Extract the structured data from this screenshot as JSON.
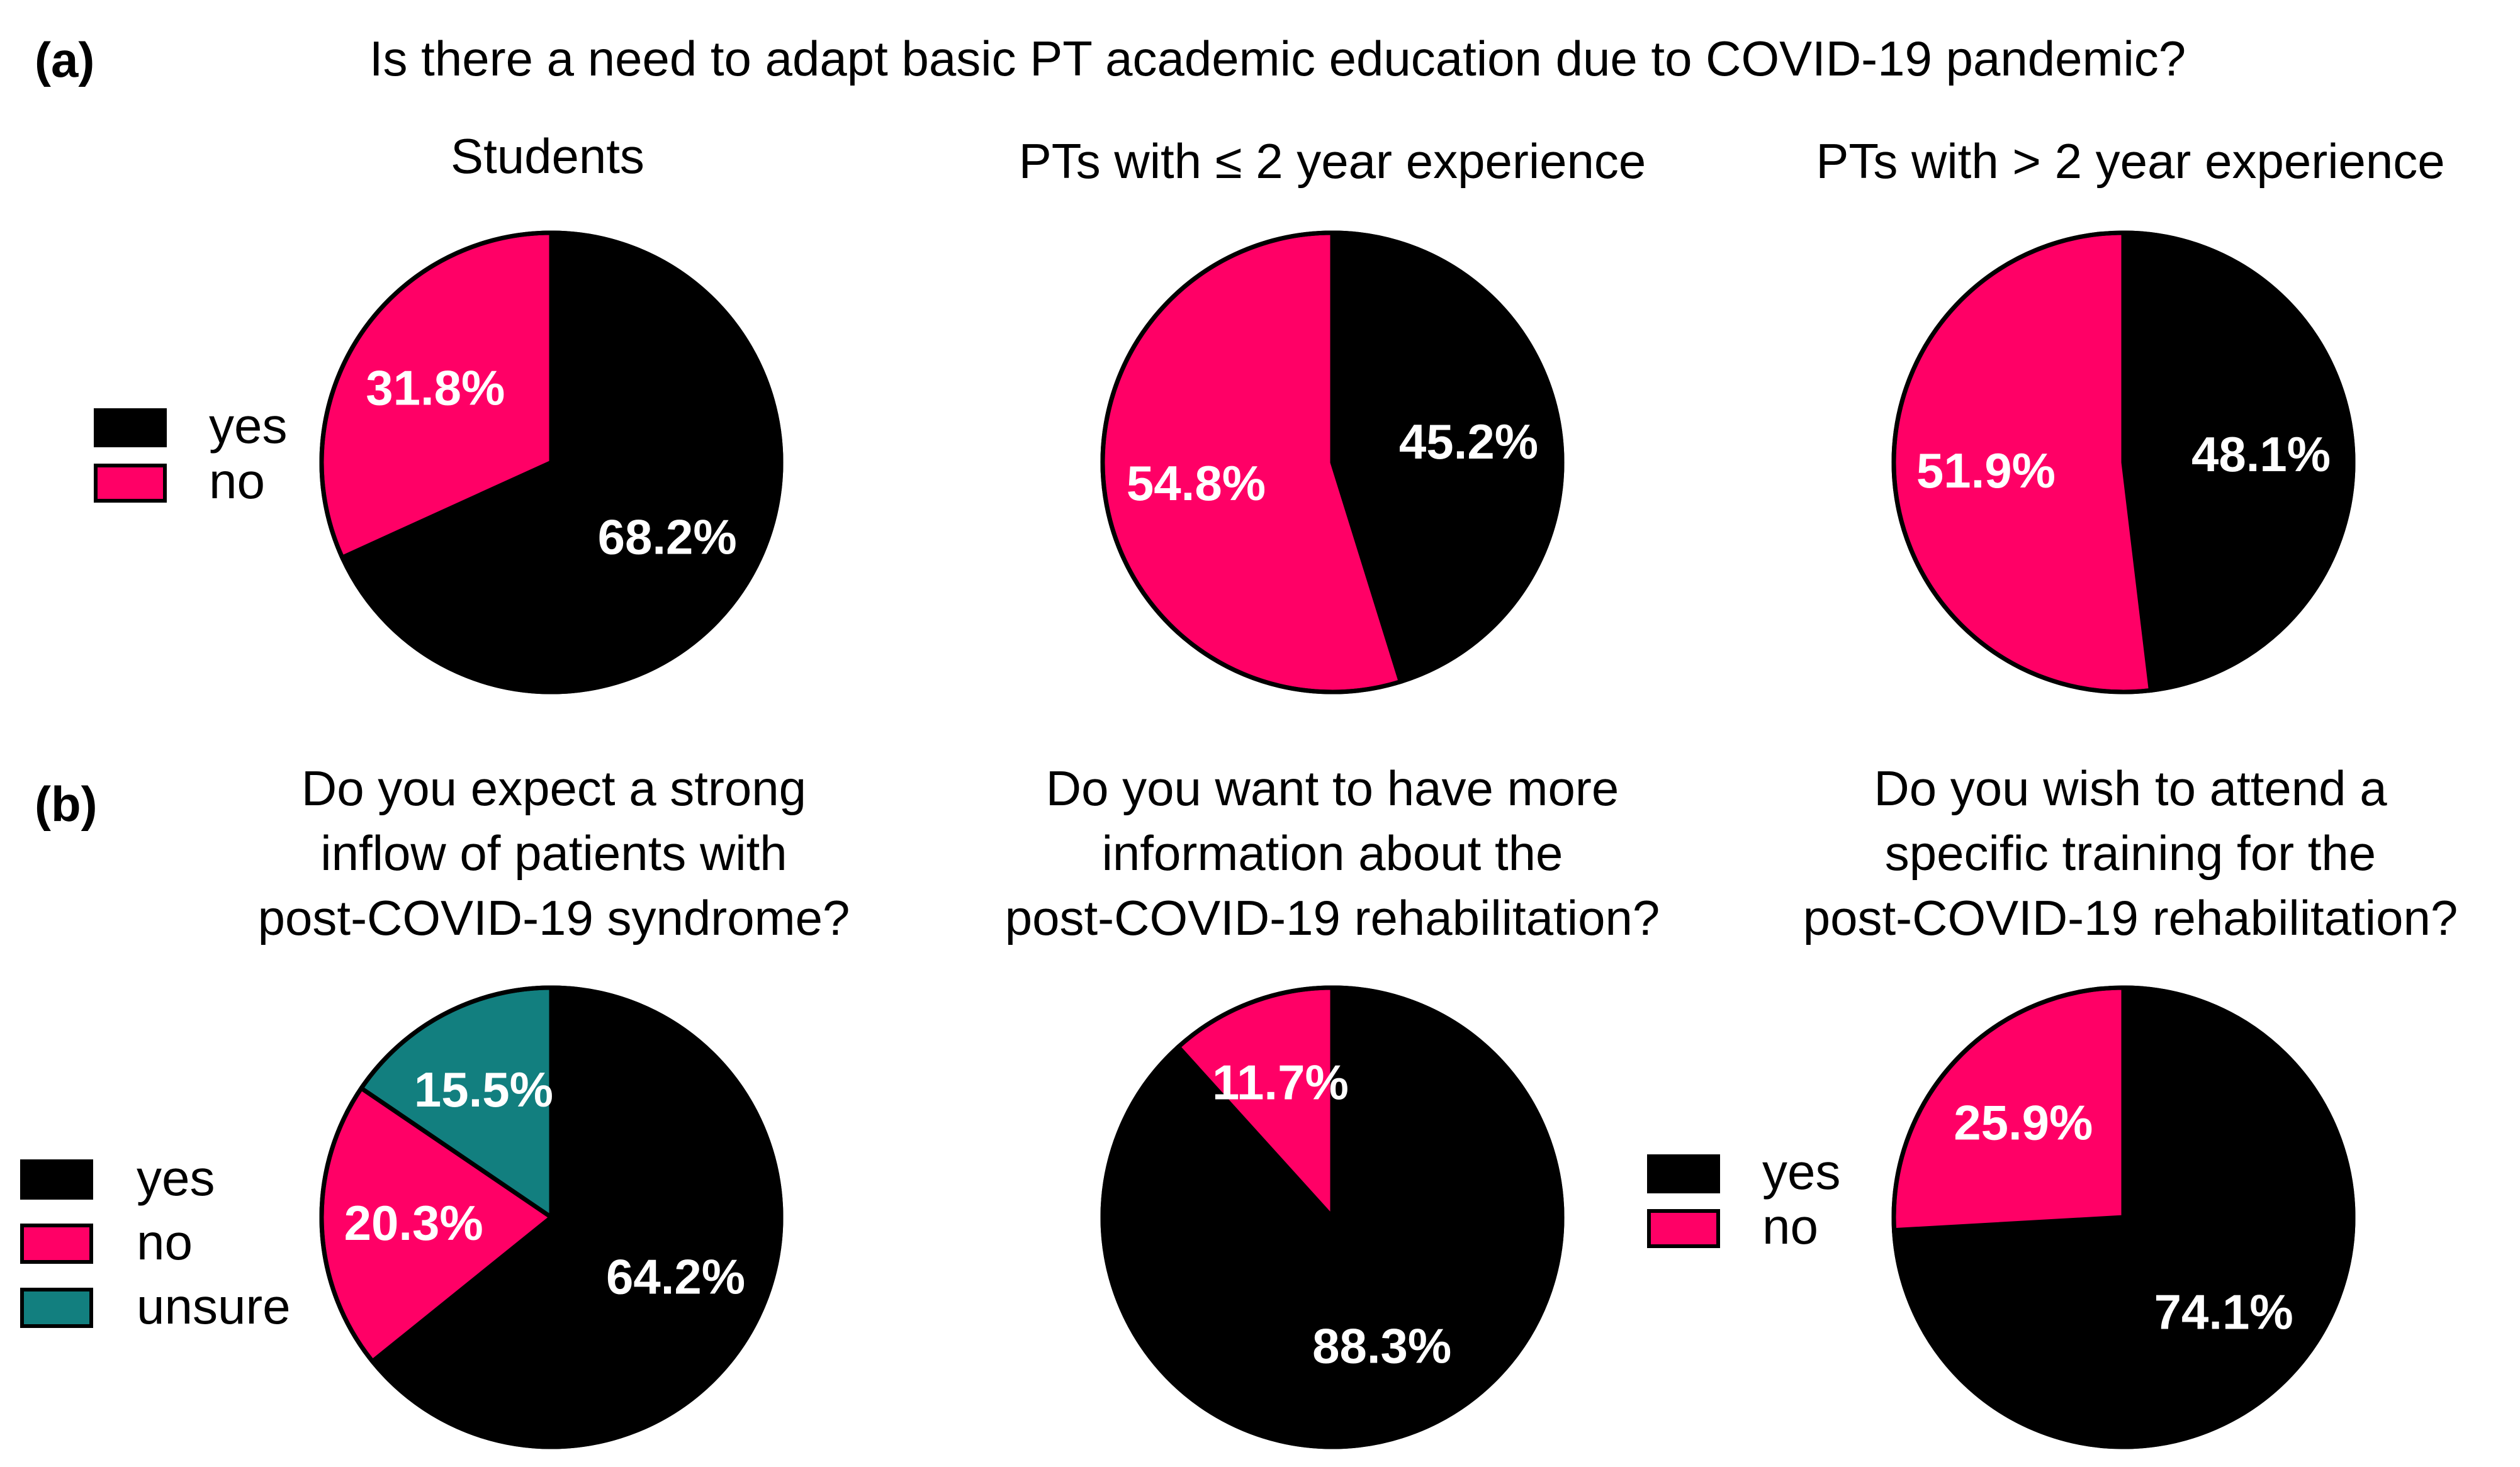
{
  "figure": {
    "panel_a_label": "(a)",
    "panel_a_question": "Is there a need to adapt basic PT academic education due to COVID-19 pandemic?",
    "panel_b_label": "(b)"
  },
  "colors": {
    "yes": "#000000",
    "no": "#ff0066",
    "unsure": "#127f7f"
  },
  "chart_data": [
    {
      "type": "pie",
      "panel": "a",
      "title": "Students",
      "slices": [
        {
          "label": "yes",
          "value": 68.2,
          "text": "68.2%"
        },
        {
          "label": "no",
          "value": 31.8,
          "text": "31.8%"
        }
      ],
      "legend": [
        "yes",
        "no"
      ]
    },
    {
      "type": "pie",
      "panel": "a",
      "title": "PTs with ≤ 2 year experience",
      "slices": [
        {
          "label": "yes",
          "value": 45.2,
          "text": "45.2%"
        },
        {
          "label": "no",
          "value": 54.8,
          "text": "54.8%"
        }
      ]
    },
    {
      "type": "pie",
      "panel": "a",
      "title": "PTs with > 2 year experience",
      "slices": [
        {
          "label": "yes",
          "value": 48.1,
          "text": "48.1%"
        },
        {
          "label": "no",
          "value": 51.9,
          "text": "51.9%"
        }
      ]
    },
    {
      "type": "pie",
      "panel": "b",
      "title": "Do you expect a strong inflow of patients with post-COVID-19 syndrome?",
      "title_lines": [
        "Do you expect a strong",
        "inflow of patients with",
        "post-COVID-19 syndrome?"
      ],
      "slices": [
        {
          "label": "yes",
          "value": 64.2,
          "text": "64.2%"
        },
        {
          "label": "no",
          "value": 20.3,
          "text": "20.3%"
        },
        {
          "label": "unsure",
          "value": 15.5,
          "text": "15.5%"
        }
      ],
      "legend": [
        "yes",
        "no",
        "unsure"
      ]
    },
    {
      "type": "pie",
      "panel": "b",
      "title": "Do you want to have more information about the post-COVID-19 rehabilitation?",
      "title_lines": [
        "Do you want to have more",
        "information about the",
        "post-COVID-19 rehabilitation?"
      ],
      "slices": [
        {
          "label": "yes",
          "value": 88.3,
          "text": "88.3%"
        },
        {
          "label": "no",
          "value": 11.7,
          "text": "11.7%"
        }
      ]
    },
    {
      "type": "pie",
      "panel": "b",
      "title": "Do you wish to attend a specific training for the post-COVID-19 rehabilitation?",
      "title_lines": [
        "Do you wish to attend a",
        "specific training for the",
        "post-COVID-19 rehabilitation?"
      ],
      "slices": [
        {
          "label": "yes",
          "value": 74.1,
          "text": "74.1%"
        },
        {
          "label": "no",
          "value": 25.9,
          "text": "25.9%"
        }
      ],
      "legend": [
        "yes",
        "no"
      ]
    }
  ]
}
